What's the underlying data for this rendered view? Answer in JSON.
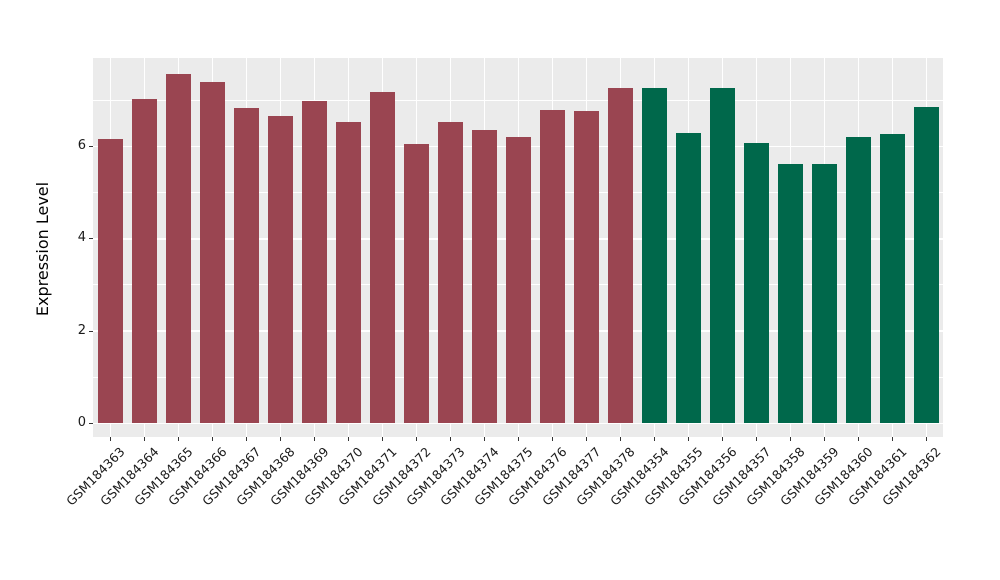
{
  "chart_data": {
    "type": "bar",
    "title": "",
    "ylabel": "Expression Level",
    "xlabel": "",
    "categories": [
      "GSM184363",
      "GSM184364",
      "GSM184365",
      "GSM184366",
      "GSM184367",
      "GSM184368",
      "GSM184369",
      "GSM184370",
      "GSM184371",
      "GSM184372",
      "GSM184373",
      "GSM184374",
      "GSM184375",
      "GSM184376",
      "GSM184377",
      "GSM184378",
      "GSM184354",
      "GSM184355",
      "GSM184356",
      "GSM184357",
      "GSM184358",
      "GSM184359",
      "GSM184360",
      "GSM184361",
      "GSM184362"
    ],
    "values": [
      6.16,
      7.01,
      7.57,
      7.39,
      6.83,
      6.65,
      6.98,
      6.53,
      7.18,
      6.04,
      6.53,
      6.35,
      6.2,
      6.78,
      6.76,
      7.26,
      7.26,
      6.29,
      7.26,
      6.06,
      5.6,
      5.62,
      6.2,
      6.27,
      6.84
    ],
    "groups": [
      "maroon",
      "maroon",
      "maroon",
      "maroon",
      "maroon",
      "maroon",
      "maroon",
      "maroon",
      "maroon",
      "maroon",
      "maroon",
      "maroon",
      "maroon",
      "maroon",
      "maroon",
      "maroon",
      "green",
      "green",
      "green",
      "green",
      "green",
      "green",
      "green",
      "green",
      "green"
    ],
    "group_colors": {
      "maroon": "#9A4551",
      "green": "#00684B"
    },
    "y_ticks": [
      "0",
      "2",
      "4",
      "6"
    ],
    "y_minor_ticks": [
      1,
      3,
      5,
      7
    ],
    "ylim": [
      -0.3,
      7.91
    ],
    "panel_background": "#EBEBEB",
    "grid_color": "#FFFFFF",
    "grid": "major+minor",
    "legend_position": "none",
    "x_label_rotation_deg": 45
  }
}
